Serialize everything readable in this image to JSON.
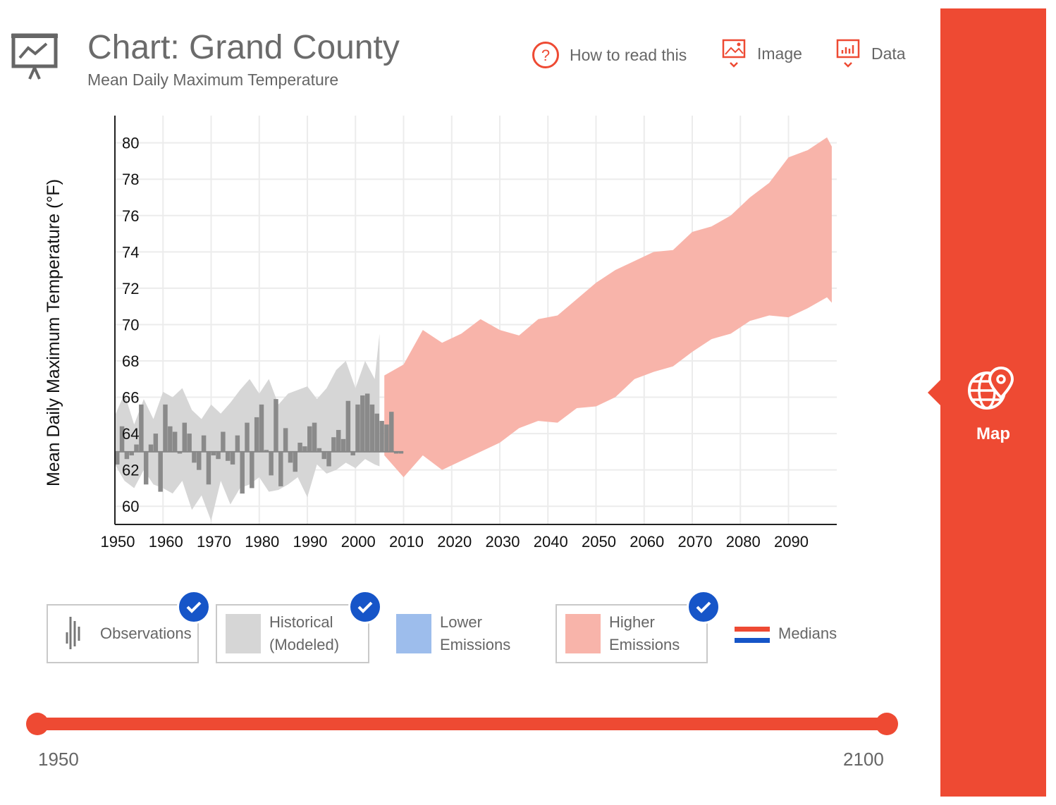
{
  "header": {
    "title": "Chart: Grand County",
    "subtitle": "Mean Daily Maximum Temperature",
    "help_label": "How to read this",
    "image_label": "Image",
    "data_label": "Data"
  },
  "chart_data": {
    "type": "area",
    "ylabel": "Mean Daily Maximum Temperature (°F)",
    "xlim": [
      1950,
      2100
    ],
    "ylim": [
      59,
      81.5
    ],
    "baseline": 63.0,
    "x_ticks": [
      1950,
      1960,
      1970,
      1980,
      1990,
      2000,
      2010,
      2020,
      2030,
      2040,
      2050,
      2060,
      2070,
      2080,
      2090
    ],
    "y_ticks": [
      60,
      62,
      64,
      66,
      68,
      70,
      72,
      74,
      76,
      78,
      80
    ],
    "series": [
      {
        "name": "Historical (Modeled)",
        "color": "#d6d6d6",
        "x": [
          1950,
          1952,
          1954,
          1956,
          1958,
          1960,
          1962,
          1964,
          1966,
          1968,
          1970,
          1972,
          1974,
          1976,
          1978,
          1980,
          1982,
          1984,
          1986,
          1988,
          1990,
          1992,
          1994,
          1996,
          1998,
          2000,
          2002,
          2004,
          2005
        ],
        "upper": [
          65.0,
          66.2,
          64.5,
          65.9,
          64.8,
          66.3,
          66.0,
          66.5,
          65.3,
          64.8,
          65.6,
          65.1,
          65.7,
          66.4,
          67.0,
          66.2,
          67.0,
          65.6,
          66.2,
          66.4,
          66.6,
          65.9,
          66.5,
          67.5,
          68.0,
          66.5,
          68.0,
          67.0,
          69.5
        ],
        "lower": [
          62.3,
          61.4,
          61.0,
          62.0,
          61.2,
          61.0,
          60.7,
          61.4,
          59.8,
          60.6,
          59.2,
          61.4,
          60.1,
          61.0,
          61.2,
          61.6,
          60.8,
          60.9,
          61.2,
          61.6,
          60.5,
          62.3,
          61.8,
          62.0,
          62.4,
          62.1,
          62.6,
          62.3,
          62.2
        ]
      },
      {
        "name": "Higher Emissions",
        "color": "#f8b4aa",
        "x": [
          2006,
          2010,
          2014,
          2018,
          2022,
          2026,
          2030,
          2034,
          2038,
          2042,
          2046,
          2050,
          2054,
          2058,
          2062,
          2066,
          2070,
          2074,
          2078,
          2082,
          2086,
          2090,
          2094,
          2098,
          2099
        ],
        "upper": [
          67.2,
          67.8,
          69.7,
          69.0,
          69.5,
          70.3,
          69.7,
          69.4,
          70.3,
          70.5,
          71.4,
          72.3,
          73.0,
          73.5,
          74.0,
          74.1,
          75.1,
          75.4,
          76.0,
          77.0,
          77.8,
          79.2,
          79.6,
          80.3,
          79.8
        ],
        "lower": [
          62.8,
          61.6,
          62.8,
          62.0,
          62.5,
          63.0,
          63.5,
          64.3,
          64.7,
          64.6,
          65.4,
          65.5,
          66.0,
          67.0,
          67.4,
          67.7,
          68.5,
          69.2,
          69.5,
          70.2,
          70.5,
          70.4,
          70.9,
          71.5,
          71.2
        ]
      }
    ],
    "observations": {
      "name": "Observations",
      "color": "#8a8a8a",
      "years": [
        1950,
        1951,
        1952,
        1953,
        1954,
        1955,
        1956,
        1957,
        1958,
        1959,
        1960,
        1961,
        1962,
        1963,
        1964,
        1965,
        1966,
        1967,
        1968,
        1969,
        1970,
        1971,
        1972,
        1973,
        1974,
        1975,
        1976,
        1977,
        1978,
        1979,
        1980,
        1981,
        1982,
        1983,
        1984,
        1985,
        1986,
        1987,
        1988,
        1989,
        1990,
        1991,
        1992,
        1993,
        1994,
        1995,
        1996,
        1997,
        1998,
        1999,
        2000,
        2001,
        2002,
        2003,
        2004,
        2005,
        2006,
        2007,
        2008,
        2009
      ],
      "values": [
        62.3,
        64.4,
        62.6,
        62.8,
        63.4,
        65.6,
        61.2,
        63.4,
        64.0,
        60.8,
        65.6,
        64.4,
        64.1,
        62.9,
        64.6,
        64.0,
        62.4,
        62.0,
        63.9,
        61.2,
        62.8,
        62.6,
        64.1,
        62.5,
        62.3,
        63.9,
        60.7,
        64.6,
        61.0,
        64.9,
        65.6,
        63.1,
        61.7,
        65.9,
        61.1,
        64.3,
        62.4,
        61.9,
        63.5,
        63.3,
        64.4,
        64.6,
        63.2,
        62.6,
        62.2,
        63.8,
        64.2,
        63.7,
        65.8,
        62.8,
        65.6,
        66.1,
        66.2,
        65.6,
        65.1,
        64.7,
        64.5,
        65.2,
        62.9,
        62.9
      ]
    }
  },
  "legend": {
    "observations": "Observations",
    "historical_line1": "Historical",
    "historical_line2": "(Modeled)",
    "lower_line1": "Lower",
    "lower_line2": "Emissions",
    "higher_line1": "Higher",
    "higher_line2": "Emissions",
    "medians": "Medians",
    "colors": {
      "historical": "#d6d6d6",
      "lower": "#9dbdec",
      "higher": "#f8b4aa",
      "median_red": "#ee4a33",
      "median_blue": "#1655c8"
    }
  },
  "slider": {
    "start_label": "1950",
    "end_label": "2100",
    "min": 1950,
    "max": 2100,
    "range": [
      1950,
      2100
    ]
  },
  "sidebar": {
    "map_label": "Map"
  }
}
